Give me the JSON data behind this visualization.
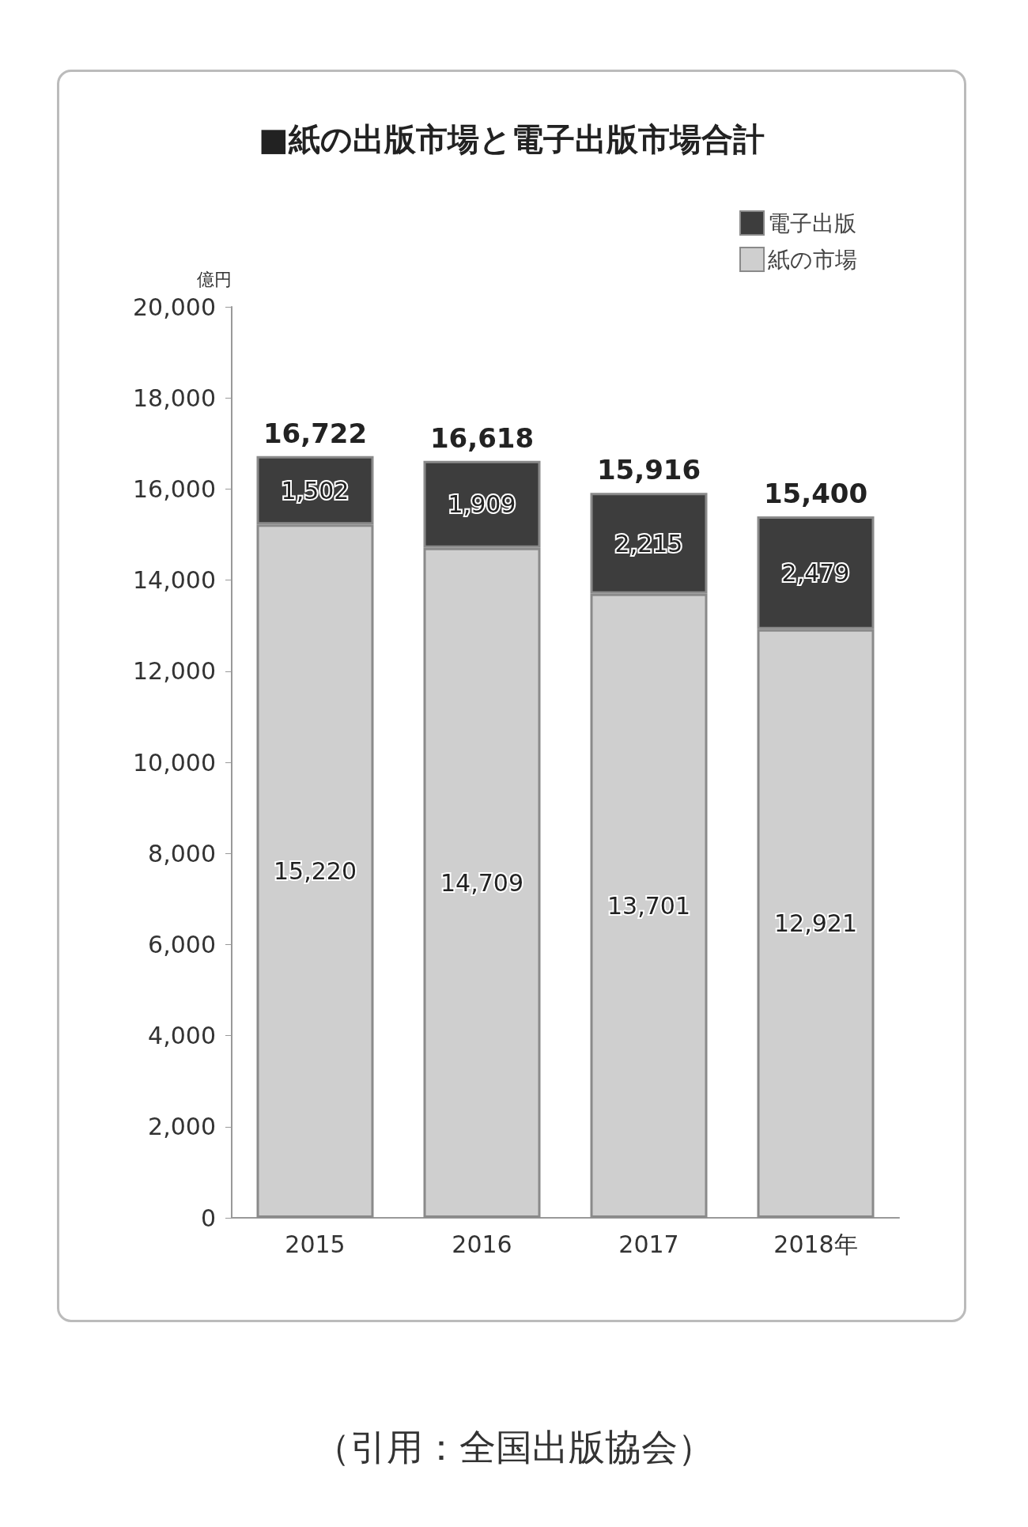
{
  "chart_data": {
    "type": "bar",
    "title": "■紙の出版市場と電子出版市場合計",
    "ylabel": "億円",
    "categories": [
      "2015",
      "2016",
      "2017",
      "2018年"
    ],
    "stacked": true,
    "series": [
      {
        "name": "紙の市場",
        "color": "#cfcfcf",
        "values": [
          15220,
          14709,
          13701,
          12921
        ],
        "value_labels": [
          "15,220",
          "14,709",
          "13,701",
          "12,921"
        ]
      },
      {
        "name": "電子出版",
        "color": "#3d3d3d",
        "values": [
          1502,
          1909,
          2215,
          2479
        ],
        "value_labels": [
          "1,502",
          "1,909",
          "2,215",
          "2,479"
        ]
      }
    ],
    "totals": [
      "16,722",
      "16,618",
      "15,916",
      "15,400"
    ],
    "ylim": [
      0,
      20000
    ],
    "yticks": [
      {
        "value": 0,
        "label": "0"
      },
      {
        "value": 2000,
        "label": "2,000"
      },
      {
        "value": 4000,
        "label": "4,000"
      },
      {
        "value": 6000,
        "label": "6,000"
      },
      {
        "value": 8000,
        "label": "8,000"
      },
      {
        "value": 10000,
        "label": "10,000"
      },
      {
        "value": 12000,
        "label": "12,000"
      },
      {
        "value": 14000,
        "label": "14,000"
      },
      {
        "value": 16000,
        "label": "16,000"
      },
      {
        "value": 18000,
        "label": "18,000"
      },
      {
        "value": 20000,
        "label": "20,000"
      }
    ],
    "grid": false,
    "legend": "top right",
    "annotations": [
      "（引用：全国出版協会）"
    ]
  }
}
